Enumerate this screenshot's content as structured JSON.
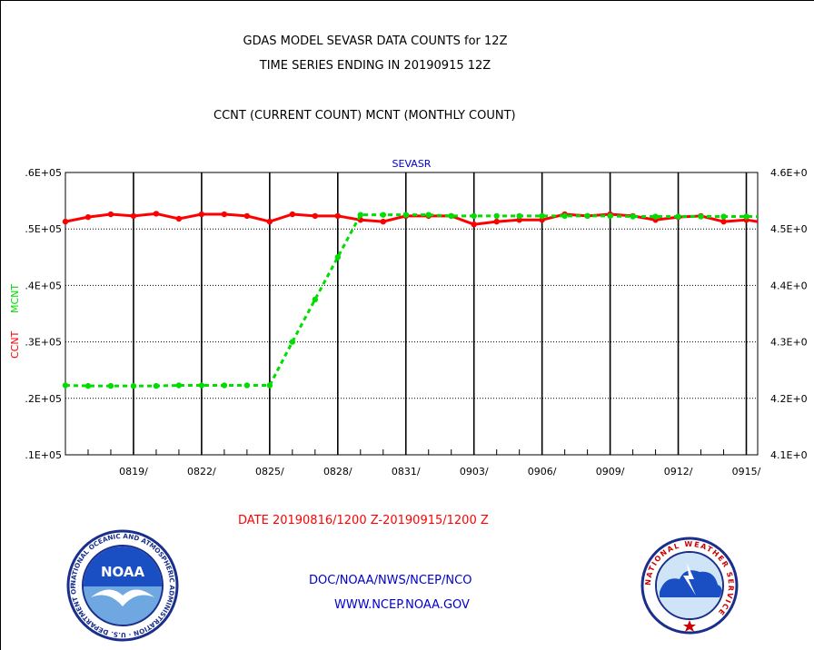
{
  "header": {
    "title": "GDAS MODEL SEVASR DATA COUNTS for 12Z",
    "subtitle": "TIME SERIES ENDING IN 20190915 12Z",
    "legend_note": "CCNT (CURRENT COUNT) MCNT (MONTHLY COUNT)"
  },
  "footer": {
    "date_range": "DATE 20190816/1200 Z-20190915/1200 Z",
    "org": "DOC/NOAA/NWS/NCEP/NCO",
    "url": "WWW.NCEP.NOAA.GOV"
  },
  "logos": {
    "left": "noaa-logo",
    "right": "nws-logo",
    "noaa_text": "NOAA",
    "noaa_ring_text": "NATIONAL OCEANIC AND ATMOSPHERIC ADMINISTRATION · U.S. DEPARTMENT OF COMMERCE",
    "nws_ring_text": "NATIONAL WEATHER SERVICE"
  },
  "colors": {
    "ccnt": "#ff0000",
    "mcnt": "#00dd00",
    "plot_title": "#0000cc"
  },
  "chart_data": {
    "type": "line",
    "title": "SEVASR",
    "ylabel_left": "CCNT",
    "ylabel_left2": "MCNT",
    "left_axis": {
      "ticks": [
        ".1E+05",
        ".2E+05",
        ".3E+05",
        ".4E+05",
        ".5E+05",
        ".6E+05"
      ],
      "ylim": [
        10000,
        60000
      ]
    },
    "right_axis": {
      "ticks": [
        "4.1E+0",
        "4.2E+0",
        "4.3E+0",
        "4.4E+0",
        "4.5E+0",
        "4.6E+0"
      ],
      "ylim": [
        4.1,
        4.6
      ]
    },
    "xlim": [
      0,
      30.5
    ],
    "x_ticks": [
      {
        "x": 3,
        "label": "0819/"
      },
      {
        "x": 6,
        "label": "0822/"
      },
      {
        "x": 9,
        "label": "0825/"
      },
      {
        "x": 12,
        "label": "0828/"
      },
      {
        "x": 15,
        "label": "0831/"
      },
      {
        "x": 18,
        "label": "0903/"
      },
      {
        "x": 21,
        "label": "0906/"
      },
      {
        "x": 24,
        "label": "0909/"
      },
      {
        "x": 27,
        "label": "0912/"
      },
      {
        "x": 30,
        "label": "0915/"
      }
    ],
    "series": [
      {
        "name": "CCNT",
        "axis": "left",
        "x": [
          0,
          1,
          2,
          3,
          4,
          5,
          6,
          7,
          8,
          9,
          10,
          11,
          12,
          13,
          14,
          15,
          16,
          17,
          18,
          19,
          20,
          21,
          22,
          23,
          24,
          25,
          26,
          27,
          28,
          29,
          30,
          30.5
        ],
        "values": [
          51300,
          52100,
          52600,
          52300,
          52700,
          51800,
          52600,
          52600,
          52300,
          51300,
          52600,
          52300,
          52300,
          51600,
          51300,
          52300,
          52300,
          52300,
          50800,
          51300,
          51600,
          51600,
          52600,
          52300,
          52600,
          52300,
          51600,
          52100,
          52300,
          51300,
          51600,
          51300
        ]
      },
      {
        "name": "MCNT",
        "axis": "right",
        "x": [
          0,
          1,
          2,
          3,
          4,
          5,
          6,
          7,
          8,
          9,
          10,
          11,
          12,
          13,
          14,
          15,
          16,
          17,
          18,
          19,
          20,
          21,
          22,
          23,
          24,
          25,
          26,
          27,
          28,
          29,
          30,
          30.5
        ],
        "values": [
          4.223,
          4.222,
          4.222,
          4.222,
          4.222,
          4.223,
          4.223,
          4.223,
          4.223,
          4.223,
          4.3,
          4.375,
          4.45,
          4.525,
          4.525,
          4.525,
          4.525,
          4.523,
          4.523,
          4.523,
          4.523,
          4.523,
          4.523,
          4.523,
          4.523,
          4.522,
          4.522,
          4.522,
          4.522,
          4.522,
          4.522,
          4.522
        ]
      }
    ],
    "grid": true
  }
}
